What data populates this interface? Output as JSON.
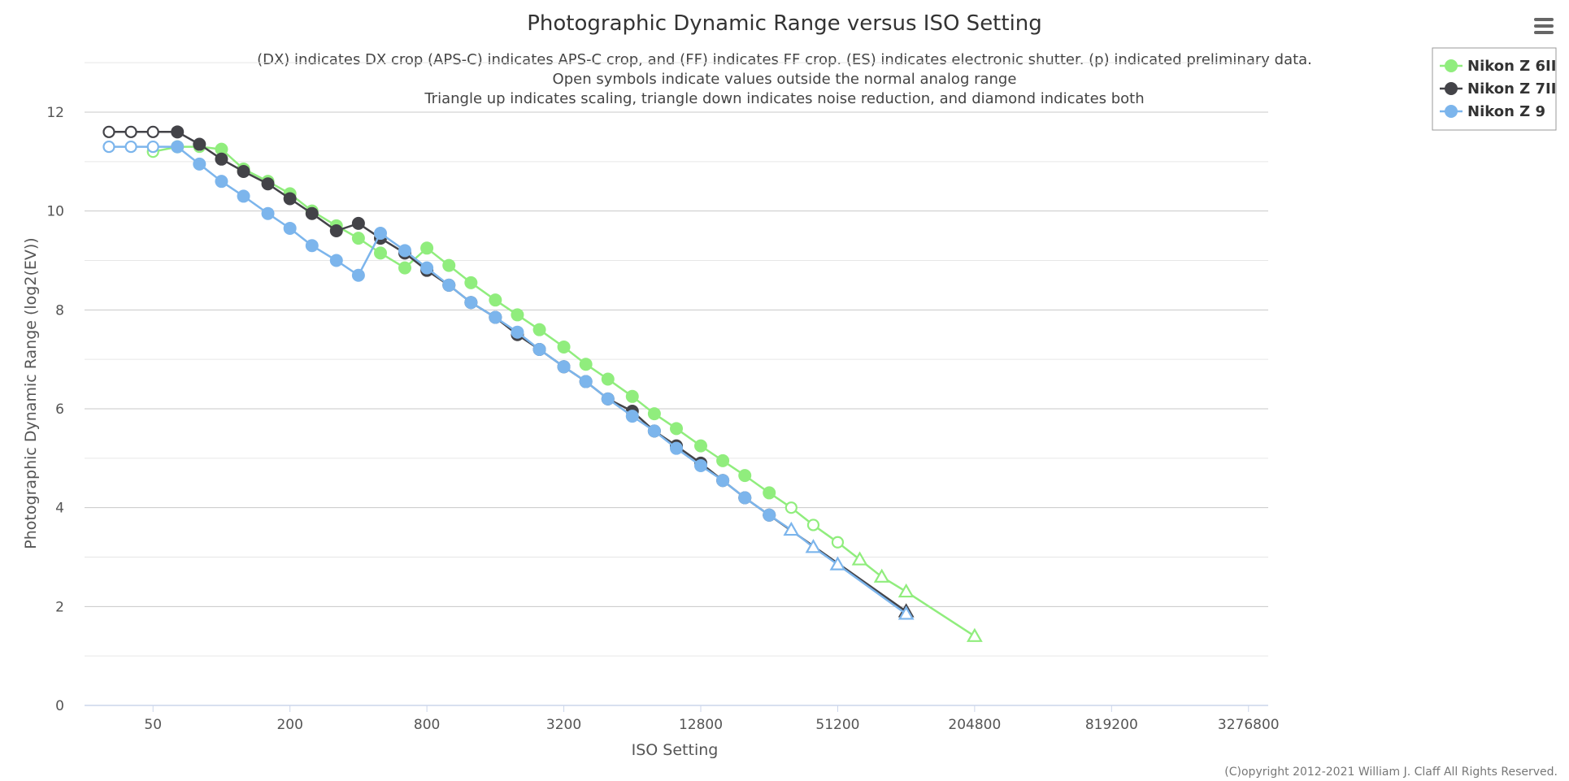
{
  "chart_data": {
    "type": "line",
    "title": "Photographic Dynamic Range versus ISO Setting",
    "subtitle": [
      "(DX) indicates DX crop (APS-C) indicates APS-C crop, and (FF) indicates FF crop. (ES) indicates electronic shutter. (p) indicated preliminary data.",
      "Open symbols indicate values outside the normal analog range",
      "Triangle up indicates scaling, triangle down indicates noise reduction, and diamond indicates both"
    ],
    "xlabel": "ISO Setting",
    "ylabel": "Photographic Dynamic Range (log2(EV))",
    "x_scale": "log2",
    "xlim": [
      25,
      4000000
    ],
    "ylim": [
      0,
      12
    ],
    "x_ticks": [
      50,
      200,
      800,
      3200,
      12800,
      51200,
      204800,
      819200,
      3276800
    ],
    "y_ticks": [
      0,
      2,
      4,
      6,
      8,
      10,
      12
    ],
    "grid": true,
    "legend_position": "top-right",
    "credits": "(C)opyright 2012-2021 William J. Claff All Rights Reserved.",
    "series": [
      {
        "name": "Nikon Z 6II",
        "color": "#90ed7d",
        "points": [
          {
            "x": 50,
            "y": 11.2,
            "m": "open"
          },
          {
            "x": 64,
            "y": 11.3,
            "m": "filled"
          },
          {
            "x": 80,
            "y": 11.3,
            "m": "open"
          },
          {
            "x": 100,
            "y": 11.25,
            "m": "filled"
          },
          {
            "x": 125,
            "y": 10.85,
            "m": "filled"
          },
          {
            "x": 160,
            "y": 10.6,
            "m": "filled"
          },
          {
            "x": 200,
            "y": 10.35,
            "m": "filled"
          },
          {
            "x": 250,
            "y": 10.0,
            "m": "filled"
          },
          {
            "x": 320,
            "y": 9.7,
            "m": "filled"
          },
          {
            "x": 400,
            "y": 9.45,
            "m": "filled"
          },
          {
            "x": 500,
            "y": 9.15,
            "m": "filled"
          },
          {
            "x": 640,
            "y": 8.85,
            "m": "filled"
          },
          {
            "x": 800,
            "y": 9.25,
            "m": "filled"
          },
          {
            "x": 1000,
            "y": 8.9,
            "m": "filled"
          },
          {
            "x": 1250,
            "y": 8.55,
            "m": "filled"
          },
          {
            "x": 1600,
            "y": 8.2,
            "m": "filled"
          },
          {
            "x": 2000,
            "y": 7.9,
            "m": "filled"
          },
          {
            "x": 2500,
            "y": 7.6,
            "m": "filled"
          },
          {
            "x": 3200,
            "y": 7.25,
            "m": "filled"
          },
          {
            "x": 4000,
            "y": 6.9,
            "m": "filled"
          },
          {
            "x": 5000,
            "y": 6.6,
            "m": "filled"
          },
          {
            "x": 6400,
            "y": 6.25,
            "m": "filled"
          },
          {
            "x": 8000,
            "y": 5.9,
            "m": "filled"
          },
          {
            "x": 10000,
            "y": 5.6,
            "m": "filled"
          },
          {
            "x": 12800,
            "y": 5.25,
            "m": "filled"
          },
          {
            "x": 16000,
            "y": 4.95,
            "m": "filled"
          },
          {
            "x": 20000,
            "y": 4.65,
            "m": "filled"
          },
          {
            "x": 25600,
            "y": 4.3,
            "m": "filled"
          },
          {
            "x": 32000,
            "y": 4.0,
            "m": "open"
          },
          {
            "x": 40000,
            "y": 3.65,
            "m": "open"
          },
          {
            "x": 51200,
            "y": 3.3,
            "m": "open"
          },
          {
            "x": 64000,
            "y": 2.95,
            "m": "triangle"
          },
          {
            "x": 80000,
            "y": 2.6,
            "m": "triangle"
          },
          {
            "x": 102400,
            "y": 2.3,
            "m": "triangle"
          },
          {
            "x": 204800,
            "y": 1.4,
            "m": "triangle"
          }
        ]
      },
      {
        "name": "Nikon Z 7II",
        "color": "#434348",
        "points": [
          {
            "x": 32,
            "y": 11.6,
            "m": "open"
          },
          {
            "x": 40,
            "y": 11.6,
            "m": "open"
          },
          {
            "x": 50,
            "y": 11.6,
            "m": "open"
          },
          {
            "x": 64,
            "y": 11.6,
            "m": "filled"
          },
          {
            "x": 80,
            "y": 11.35,
            "m": "filled"
          },
          {
            "x": 100,
            "y": 11.05,
            "m": "filled"
          },
          {
            "x": 125,
            "y": 10.8,
            "m": "filled"
          },
          {
            "x": 160,
            "y": 10.55,
            "m": "filled"
          },
          {
            "x": 200,
            "y": 10.25,
            "m": "filled"
          },
          {
            "x": 250,
            "y": 9.95,
            "m": "filled"
          },
          {
            "x": 320,
            "y": 9.6,
            "m": "filled"
          },
          {
            "x": 400,
            "y": 9.75,
            "m": "filled"
          },
          {
            "x": 500,
            "y": 9.45,
            "m": "filled"
          },
          {
            "x": 640,
            "y": 9.15,
            "m": "filled"
          },
          {
            "x": 800,
            "y": 8.8,
            "m": "filled"
          },
          {
            "x": 1000,
            "y": 8.5,
            "m": "filled"
          },
          {
            "x": 1250,
            "y": 8.15,
            "m": "filled"
          },
          {
            "x": 1600,
            "y": 7.85,
            "m": "filled"
          },
          {
            "x": 2000,
            "y": 7.5,
            "m": "filled"
          },
          {
            "x": 2500,
            "y": 7.2,
            "m": "filled"
          },
          {
            "x": 3200,
            "y": 6.85,
            "m": "filled"
          },
          {
            "x": 4000,
            "y": 6.55,
            "m": "filled"
          },
          {
            "x": 5000,
            "y": 6.2,
            "m": "filled"
          },
          {
            "x": 6400,
            "y": 5.95,
            "m": "filled"
          },
          {
            "x": 8000,
            "y": 5.55,
            "m": "filled"
          },
          {
            "x": 10000,
            "y": 5.25,
            "m": "filled"
          },
          {
            "x": 12800,
            "y": 4.9,
            "m": "filled"
          },
          {
            "x": 16000,
            "y": 4.55,
            "m": "filled"
          },
          {
            "x": 20000,
            "y": 4.2,
            "m": "filled"
          },
          {
            "x": 25600,
            "y": 3.85,
            "m": "filled"
          },
          {
            "x": 102400,
            "y": 1.9,
            "m": "triangle"
          }
        ]
      },
      {
        "name": "Nikon Z 9",
        "color": "#7cb5ec",
        "points": [
          {
            "x": 32,
            "y": 11.3,
            "m": "open"
          },
          {
            "x": 40,
            "y": 11.3,
            "m": "open"
          },
          {
            "x": 50,
            "y": 11.3,
            "m": "open"
          },
          {
            "x": 64,
            "y": 11.3,
            "m": "filled"
          },
          {
            "x": 80,
            "y": 10.95,
            "m": "filled"
          },
          {
            "x": 100,
            "y": 10.6,
            "m": "filled"
          },
          {
            "x": 125,
            "y": 10.3,
            "m": "filled"
          },
          {
            "x": 160,
            "y": 9.95,
            "m": "filled"
          },
          {
            "x": 200,
            "y": 9.65,
            "m": "filled"
          },
          {
            "x": 250,
            "y": 9.3,
            "m": "filled"
          },
          {
            "x": 320,
            "y": 9.0,
            "m": "filled"
          },
          {
            "x": 400,
            "y": 8.7,
            "m": "filled"
          },
          {
            "x": 500,
            "y": 9.55,
            "m": "filled"
          },
          {
            "x": 640,
            "y": 9.2,
            "m": "filled"
          },
          {
            "x": 800,
            "y": 8.85,
            "m": "filled"
          },
          {
            "x": 1000,
            "y": 8.5,
            "m": "filled"
          },
          {
            "x": 1250,
            "y": 8.15,
            "m": "filled"
          },
          {
            "x": 1600,
            "y": 7.85,
            "m": "filled"
          },
          {
            "x": 2000,
            "y": 7.55,
            "m": "filled"
          },
          {
            "x": 2500,
            "y": 7.2,
            "m": "filled"
          },
          {
            "x": 3200,
            "y": 6.85,
            "m": "filled"
          },
          {
            "x": 4000,
            "y": 6.55,
            "m": "filled"
          },
          {
            "x": 5000,
            "y": 6.2,
            "m": "filled"
          },
          {
            "x": 6400,
            "y": 5.85,
            "m": "filled"
          },
          {
            "x": 8000,
            "y": 5.55,
            "m": "filled"
          },
          {
            "x": 10000,
            "y": 5.2,
            "m": "filled"
          },
          {
            "x": 12800,
            "y": 4.85,
            "m": "filled"
          },
          {
            "x": 16000,
            "y": 4.55,
            "m": "filled"
          },
          {
            "x": 20000,
            "y": 4.2,
            "m": "filled"
          },
          {
            "x": 25600,
            "y": 3.85,
            "m": "filled"
          },
          {
            "x": 32000,
            "y": 3.55,
            "m": "triangle"
          },
          {
            "x": 40000,
            "y": 3.2,
            "m": "triangle"
          },
          {
            "x": 51200,
            "y": 2.85,
            "m": "triangle"
          },
          {
            "x": 102400,
            "y": 1.85,
            "m": "triangle"
          }
        ]
      }
    ]
  }
}
